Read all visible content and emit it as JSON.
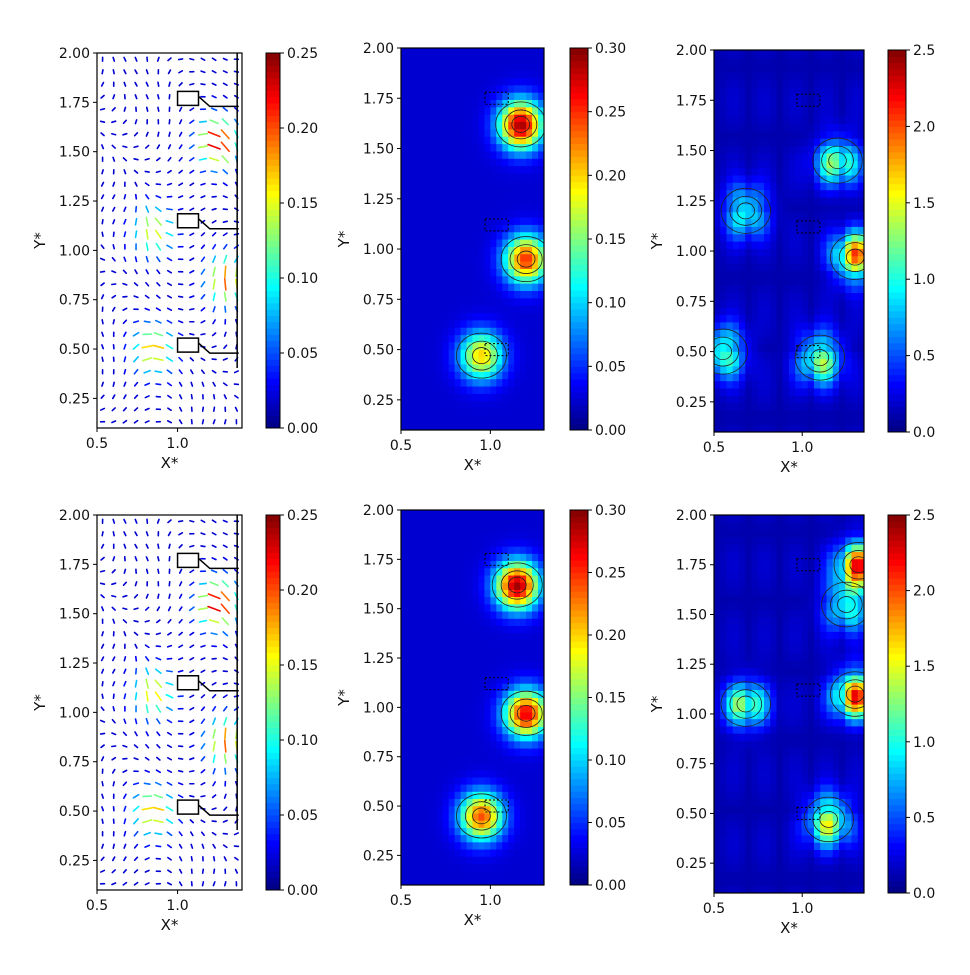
{
  "figure": {
    "colors": {
      "colormap": [
        "#00007f",
        "#0000ff",
        "#007fff",
        "#00ffff",
        "#7fff7f",
        "#ffff00",
        "#ff7f00",
        "#ff0000",
        "#7f0000"
      ],
      "outline": "#000000"
    }
  },
  "chart_data": [
    {
      "type": "heatmap",
      "id": "p11",
      "field": "velocity-vectors",
      "xlabel": "X*",
      "ylabel": "Y*",
      "xlim": [
        0.5,
        1.4
      ],
      "ylim": [
        0.1,
        2.0
      ],
      "x_ticks": [
        "0.5",
        "1.0"
      ],
      "y_ticks": [
        "0.25",
        "0.50",
        "0.75",
        "1.00",
        "1.25",
        "1.50",
        "1.75",
        "2.00"
      ],
      "colorbar": {
        "min": 0,
        "max": 0.25,
        "ticks": [
          "0.00",
          "0.05",
          "0.10",
          "0.15",
          "0.20",
          "0.25"
        ]
      },
      "hotspots": [
        {
          "x": 1.25,
          "y": 1.55,
          "value": 0.24
        },
        {
          "x": 0.85,
          "y": 0.5,
          "value": 0.18
        },
        {
          "x": 0.85,
          "y": 1.1,
          "value": 0.16
        },
        {
          "x": 1.3,
          "y": 0.85,
          "value": 0.2
        }
      ]
    },
    {
      "type": "heatmap",
      "id": "p12",
      "field": "velocity-magnitude",
      "xlabel": "X*",
      "ylabel": "Y*",
      "xlim": [
        0.5,
        1.3
      ],
      "ylim": [
        0.1,
        2.0
      ],
      "x_ticks": [
        "0.5",
        "1.0"
      ],
      "y_ticks": [
        "0.25",
        "0.50",
        "0.75",
        "1.00",
        "1.25",
        "1.50",
        "1.75",
        "2.00"
      ],
      "colorbar": {
        "min": 0,
        "max": 0.3,
        "ticks": [
          "0.00",
          "0.05",
          "0.10",
          "0.15",
          "0.20",
          "0.25",
          "0.30"
        ]
      },
      "hotspots": [
        {
          "x": 1.17,
          "y": 1.62,
          "value": 0.29
        },
        {
          "x": 1.2,
          "y": 0.95,
          "value": 0.25
        },
        {
          "x": 0.95,
          "y": 0.47,
          "value": 0.2
        }
      ]
    },
    {
      "type": "heatmap",
      "id": "p13",
      "field": "turbulence",
      "xlabel": "X*",
      "ylabel": "Y*",
      "xlim": [
        0.5,
        1.35
      ],
      "ylim": [
        0.1,
        2.0
      ],
      "x_ticks": [
        "0.5",
        "1.0"
      ],
      "y_ticks": [
        "0.25",
        "0.50",
        "0.75",
        "1.00",
        "1.25",
        "1.50",
        "1.75",
        "2.00"
      ],
      "colorbar": {
        "min": 0,
        "max": 2.5,
        "ticks": [
          "0.0",
          "0.5",
          "1.0",
          "1.5",
          "2.0",
          "2.5"
        ]
      },
      "hotspots": [
        {
          "x": 0.55,
          "y": 0.5,
          "value": 1.7
        },
        {
          "x": 0.68,
          "y": 1.2,
          "value": 1.5
        },
        {
          "x": 1.3,
          "y": 0.97,
          "value": 2.3
        },
        {
          "x": 1.1,
          "y": 0.47,
          "value": 1.8
        },
        {
          "x": 1.2,
          "y": 1.45,
          "value": 1.6
        }
      ]
    },
    {
      "type": "heatmap",
      "id": "p21",
      "field": "velocity-vectors",
      "xlabel": "X*",
      "ylabel": "Y*",
      "xlim": [
        0.5,
        1.4
      ],
      "ylim": [
        0.1,
        2.0
      ],
      "x_ticks": [
        "0.5",
        "1.0"
      ],
      "y_ticks": [
        "0.25",
        "0.50",
        "0.75",
        "1.00",
        "1.25",
        "1.50",
        "1.75",
        "2.00"
      ],
      "colorbar": {
        "min": 0,
        "max": 0.25,
        "ticks": [
          "0.00",
          "0.05",
          "0.10",
          "0.15",
          "0.20",
          "0.25"
        ]
      },
      "hotspots": [
        {
          "x": 1.25,
          "y": 1.55,
          "value": 0.24
        },
        {
          "x": 0.85,
          "y": 0.5,
          "value": 0.18
        },
        {
          "x": 0.85,
          "y": 1.1,
          "value": 0.17
        },
        {
          "x": 1.3,
          "y": 0.85,
          "value": 0.2
        }
      ]
    },
    {
      "type": "heatmap",
      "id": "p22",
      "field": "velocity-magnitude",
      "xlabel": "X*",
      "ylabel": "Y*",
      "xlim": [
        0.5,
        1.3
      ],
      "ylim": [
        0.1,
        2.0
      ],
      "x_ticks": [
        "0.5",
        "1.0"
      ],
      "y_ticks": [
        "0.25",
        "0.50",
        "0.75",
        "1.00",
        "1.25",
        "1.50",
        "1.75",
        "2.00"
      ],
      "colorbar": {
        "min": 0,
        "max": 0.3,
        "ticks": [
          "0.00",
          "0.05",
          "0.10",
          "0.15",
          "0.20",
          "0.25",
          "0.30"
        ]
      },
      "hotspots": [
        {
          "x": 1.15,
          "y": 1.62,
          "value": 0.29
        },
        {
          "x": 1.2,
          "y": 0.97,
          "value": 0.27
        },
        {
          "x": 0.95,
          "y": 0.45,
          "value": 0.24
        }
      ]
    },
    {
      "type": "heatmap",
      "id": "p23",
      "field": "turbulence",
      "xlabel": "X*",
      "ylabel": "Y*",
      "xlim": [
        0.5,
        1.35
      ],
      "ylim": [
        0.1,
        2.0
      ],
      "x_ticks": [
        "0.5",
        "1.0"
      ],
      "y_ticks": [
        "0.25",
        "0.50",
        "0.75",
        "1.00",
        "1.25",
        "1.50",
        "1.75",
        "2.00"
      ],
      "colorbar": {
        "min": 0,
        "max": 2.5,
        "ticks": [
          "0.0",
          "0.5",
          "1.0",
          "1.5",
          "2.0",
          "2.5"
        ]
      },
      "hotspots": [
        {
          "x": 0.68,
          "y": 1.05,
          "value": 1.6
        },
        {
          "x": 1.3,
          "y": 1.1,
          "value": 2.4
        },
        {
          "x": 1.32,
          "y": 1.75,
          "value": 2.3
        },
        {
          "x": 1.25,
          "y": 1.55,
          "value": 1.5
        },
        {
          "x": 1.15,
          "y": 0.47,
          "value": 2.0
        }
      ]
    }
  ]
}
